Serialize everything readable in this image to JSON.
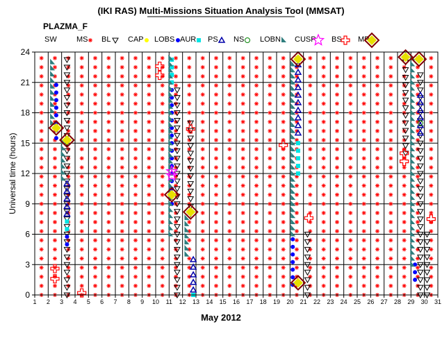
{
  "title": "(IKI RAS) Multi-Missions Situation Analysis Tool (MMSAT)",
  "subtitle": "PLAZMA_F",
  "legend": [
    {
      "label": "SW",
      "icon": "none",
      "color": "#000000"
    },
    {
      "label": "MS",
      "icon": "asterisk",
      "color": "#ff0000"
    },
    {
      "label": "BL",
      "icon": "triangle-down",
      "color": "#000000"
    },
    {
      "label": "CAP",
      "icon": "dot",
      "color": "#ffff00"
    },
    {
      "label": "LOBS",
      "icon": "dot",
      "color": "#0000ff"
    },
    {
      "label": "AUR",
      "icon": "square",
      "color": "#00e5e5"
    },
    {
      "label": "PS",
      "icon": "triangle-up",
      "color": "#0000aa"
    },
    {
      "label": "NS",
      "icon": "circle",
      "color": "#008000"
    },
    {
      "label": "LOBN",
      "icon": "wedge",
      "color": "#2e7d7d"
    },
    {
      "label": "CUSP",
      "icon": "star",
      "color": "#ff00ff"
    },
    {
      "label": "BS",
      "icon": "plus-square",
      "color": "#ff0000"
    },
    {
      "label": "MP",
      "icon": "diamond",
      "color": "#800000"
    }
  ],
  "chart_data": {
    "type": "scatter",
    "title": "(IKI RAS) Multi-Missions Situation Analysis Tool (MMSAT)",
    "xlabel": "May 2012",
    "ylabel": "Universal time (hours)",
    "xlim": [
      1,
      31
    ],
    "ylim": [
      0,
      24
    ],
    "xticks": [
      "1",
      "2",
      "3",
      "4",
      "5",
      "6",
      "7",
      "8",
      "9",
      "10",
      "11",
      "12",
      "13",
      "14",
      "15",
      "16",
      "17",
      "18",
      "19",
      "20",
      "21",
      "22",
      "23",
      "24",
      "25",
      "26",
      "27",
      "28",
      "29",
      "30",
      "31"
    ],
    "yticks": [
      "0",
      "3",
      "6",
      "9",
      "12",
      "15",
      "18",
      "21",
      "24"
    ],
    "grid": true,
    "series": [
      {
        "name": "MS",
        "marker": "asterisk",
        "color": "#ff0000",
        "note": "columns at every half-day, full 0-24 h except where other regions are marked",
        "x": [
          1.5,
          2.5,
          3.5,
          4.5,
          5.5,
          6.5,
          7.5,
          8.5,
          9.5,
          10.5,
          11.5,
          12.5,
          13.5,
          14.5,
          15.5,
          16.5,
          17.5,
          18.5,
          19.5,
          20.5,
          21.5,
          22.5,
          23.5,
          24.5,
          25.5,
          26.5,
          27.5,
          28.5,
          29.5,
          30.5
        ],
        "y_range": [
          0,
          24
        ]
      },
      {
        "name": "BL",
        "marker": "triangle-down",
        "color": "#000000",
        "segments": [
          [
            3.4,
            0.0,
            23.5
          ],
          [
            11.6,
            0.0,
            20.5
          ],
          [
            12.6,
            8.0,
            17.0
          ],
          [
            21.3,
            0.0,
            6.5
          ],
          [
            29.7,
            0.0,
            22.0
          ],
          [
            30.2,
            0.0,
            6.5
          ],
          [
            28.6,
            14.0,
            23.5
          ]
        ]
      },
      {
        "name": "LOBS",
        "marker": "dot",
        "color": "#0000ff",
        "segments": [
          [
            2.6,
            15.5,
            21.0
          ],
          [
            3.4,
            5.0,
            6.5
          ],
          [
            11.2,
            9.0,
            23.5
          ],
          [
            20.2,
            1.0,
            6.0
          ],
          [
            29.3,
            1.5,
            3.0
          ]
        ]
      },
      {
        "name": "AUR",
        "marker": "square",
        "color": "#00e5e5",
        "segments": [
          [
            3.4,
            6.5,
            7.5
          ],
          [
            11.2,
            21.0,
            23.5
          ],
          [
            12.8,
            0.0,
            0.5
          ],
          [
            20.6,
            12.0,
            15.0
          ]
        ]
      },
      {
        "name": "PS",
        "marker": "triangle-up",
        "color": "#0000aa",
        "segments": [
          [
            3.4,
            8.0,
            11.0
          ],
          [
            12.8,
            0.5,
            4.0
          ],
          [
            20.6,
            16.0,
            23.0
          ],
          [
            29.7,
            16.0,
            20.0
          ]
        ]
      },
      {
        "name": "NS",
        "marker": "circle",
        "color": "#008000",
        "segments": [
          [
            29.7,
            17.0,
            17.5
          ]
        ]
      },
      {
        "name": "LOBN",
        "marker": "wedge",
        "color": "#2e7d7d",
        "segments": [
          [
            2.3,
            17.0,
            23.5
          ],
          [
            3.1,
            11.5,
            15.5
          ],
          [
            11.1,
            6.0,
            23.5
          ],
          [
            12.3,
            4.0,
            8.0
          ],
          [
            20.2,
            6.0,
            23.0
          ],
          [
            29.1,
            3.0,
            23.5
          ]
        ]
      },
      {
        "name": "CUSP",
        "marker": "star",
        "color": "#ff00ff",
        "points": [
          [
            11.2,
            11.8
          ],
          [
            11.2,
            12.2
          ]
        ]
      },
      {
        "name": "BS",
        "marker": "plus-square",
        "color": "#ff0000",
        "points": [
          [
            2.5,
            1.6
          ],
          [
            2.5,
            2.6
          ],
          [
            4.5,
            0.2
          ],
          [
            10.3,
            21.7
          ],
          [
            10.3,
            22.6
          ],
          [
            12.6,
            16.4
          ],
          [
            19.5,
            14.8
          ],
          [
            21.4,
            7.6
          ],
          [
            28.5,
            13.2
          ],
          [
            28.5,
            14.0
          ],
          [
            30.5,
            7.5
          ]
        ]
      },
      {
        "name": "MP",
        "marker": "diamond",
        "color": "#800000",
        "points": [
          [
            2.6,
            16.5
          ],
          [
            3.4,
            15.3
          ],
          [
            11.2,
            9.9
          ],
          [
            12.6,
            8.2
          ],
          [
            20.6,
            1.2
          ],
          [
            20.6,
            23.3
          ],
          [
            28.6,
            23.5
          ],
          [
            29.6,
            23.3
          ]
        ]
      }
    ]
  }
}
